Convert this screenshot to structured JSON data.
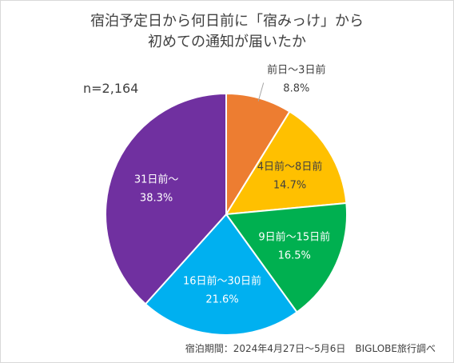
{
  "title_line1": "宿泊予定日から何日前に「宿みっけ」から",
  "title_line2": "初めての通知が届いたか",
  "sample_size": "n=2,164",
  "footnote": "宿泊期間：2024年4月27日～5月6日　BIGLOBE旅行調べ",
  "chart_data": {
    "type": "pie",
    "start_angle_deg": 0,
    "direction": "clockwise",
    "slices": [
      {
        "label": "前日～3日前",
        "value": 8.8,
        "value_label": "8.8%",
        "color": "#ED7D31",
        "text_color": "#404040",
        "label_outside": true
      },
      {
        "label": "4日前～8日前",
        "value": 14.7,
        "value_label": "14.7%",
        "color": "#FFC000",
        "text_color": "#404040",
        "label_outside": false
      },
      {
        "label": "9日前～15日前",
        "value": 16.5,
        "value_label": "16.5%",
        "color": "#00B050",
        "text_color": "#ffffff",
        "label_outside": false
      },
      {
        "label": "16日前～30日前",
        "value": 21.6,
        "value_label": "21.6%",
        "color": "#00B0F0",
        "text_color": "#ffffff",
        "label_outside": false
      },
      {
        "label": "31日前～",
        "value": 38.3,
        "value_label": "38.3%",
        "color": "#7030A0",
        "text_color": "#ffffff",
        "label_outside": false
      }
    ]
  }
}
